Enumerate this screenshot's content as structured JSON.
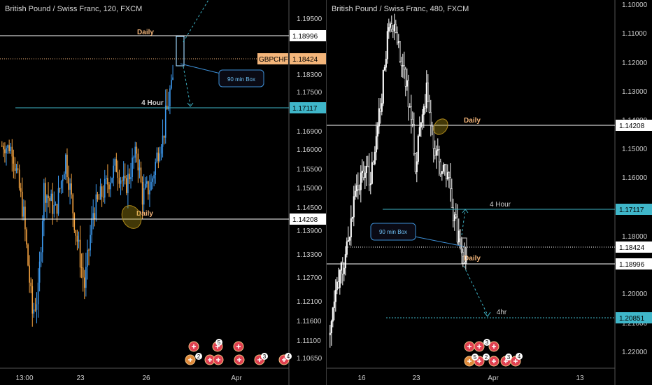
{
  "left_chart": {
    "title": "British Pound / Swiss Franc, 120, FXCM",
    "y_ticks": [
      "1.19500",
      "1.18900",
      "1.18300",
      "1.17500",
      "1.16900",
      "1.16000",
      "1.15500",
      "1.15000",
      "1.14500",
      "1.13900",
      "1.13300",
      "1.12700",
      "1.12100",
      "1.11600",
      "1.11100",
      "1.10650"
    ],
    "x_ticks": [
      "13:00",
      "23",
      "26",
      "Apr"
    ],
    "hlines": [
      {
        "label": "Daily",
        "price_tag": "1.18996",
        "color": "#ffffff"
      },
      {
        "label": "4 Hour",
        "price_tag": "1.17117",
        "color": "#3fb6c9"
      },
      {
        "label": "Daily",
        "price_tag": "1.14208",
        "color": "#ffffff"
      }
    ],
    "current_price": {
      "symbol": "GBPCHF",
      "value": "1.18424",
      "color": "#f3b57a"
    },
    "box_label": "90 min Box",
    "event_badges": [
      "5",
      "2",
      "3",
      "4"
    ]
  },
  "right_chart": {
    "title": "British Pound / Swiss Franc, 480, FXCM",
    "y_ticks": [
      "1.10000",
      "1.11000",
      "1.12000",
      "1.13000",
      "1.14000",
      "1.15000",
      "1.16000",
      "1.17000",
      "1.18000",
      "1.19000",
      "1.20000",
      "1.21000",
      "1.22000"
    ],
    "x_ticks": [
      "16",
      "23",
      "Apr",
      "13"
    ],
    "hlines": [
      {
        "label": "Daily",
        "price_tag": "1.14208",
        "color": "#ffffff"
      },
      {
        "label": "4 Hour",
        "price_tag": "1.17117",
        "color": "#3fb6c9"
      },
      {
        "label": "",
        "price_tag": "1.18424",
        "color": "#ffffff"
      },
      {
        "label": "Daily",
        "price_tag": "1.18996",
        "color": "#ffffff"
      },
      {
        "label": "4hr",
        "price_tag": "1.20851",
        "color": "#3fb6c9"
      }
    ],
    "box_label": "90 min Box",
    "event_badges": [
      "3",
      "5",
      "2",
      "3",
      "4"
    ]
  },
  "colors": {
    "up": "#3d9bf2",
    "down": "#f4a340",
    "up_right": "#ffffff",
    "down_right": "#ffffff"
  },
  "chart_data": [
    {
      "type": "candlestick",
      "title": "British Pound / Swiss Franc, 120, FXCM",
      "ylim": [
        1.1045,
        1.2005
      ],
      "axis_ticks": [
        1.195,
        1.189,
        1.183,
        1.175,
        1.169,
        1.16,
        1.155,
        1.15,
        1.145,
        1.139,
        1.133,
        1.127,
        1.121,
        1.116,
        1.111,
        1.1065
      ],
      "series": [
        {
          "trend": "path",
          "points": [
            [
              0,
              1.162
            ],
            [
              8,
              1.161
            ],
            [
              16,
              1.143
            ],
            [
              22,
              1.118
            ],
            [
              26,
              1.123
            ],
            [
              30,
              1.15
            ],
            [
              38,
              1.144
            ],
            [
              45,
              1.158
            ],
            [
              52,
              1.139
            ],
            [
              58,
              1.125
            ],
            [
              64,
              1.144
            ],
            [
              72,
              1.15
            ],
            [
              80,
              1.156
            ],
            [
              86,
              1.15
            ],
            [
              94,
              1.16
            ],
            [
              98,
              1.148
            ],
            [
              104,
              1.151
            ],
            [
              110,
              1.162
            ],
            [
              118,
              1.178
            ],
            [
              122,
              1.189
            ],
            [
              124,
              1.186
            ]
          ]
        }
      ]
    },
    {
      "type": "candlestick",
      "title": "British Pound / Swiss Franc, 480, FXCM",
      "ylim": [
        1.0985,
        1.2255
      ],
      "inverted": true,
      "axis_ticks": [
        1.1,
        1.11,
        1.12,
        1.13,
        1.14,
        1.15,
        1.16,
        1.17,
        1.18,
        1.19,
        1.2,
        1.21,
        1.22
      ],
      "series": [
        {
          "trend": "path",
          "points": [
            [
              0,
              1.215
            ],
            [
              6,
              1.2
            ],
            [
              12,
              1.186
            ],
            [
              18,
              1.17
            ],
            [
              24,
              1.158
            ],
            [
              30,
              1.16
            ],
            [
              36,
              1.14
            ],
            [
              42,
              1.112
            ],
            [
              46,
              1.108
            ],
            [
              52,
              1.12
            ],
            [
              58,
              1.135
            ],
            [
              62,
              1.155
            ],
            [
              66,
              1.138
            ],
            [
              70,
              1.13
            ],
            [
              76,
              1.15
            ],
            [
              80,
              1.155
            ],
            [
              86,
              1.16
            ],
            [
              90,
              1.175
            ],
            [
              95,
              1.185
            ],
            [
              98,
              1.189
            ]
          ]
        }
      ]
    }
  ]
}
